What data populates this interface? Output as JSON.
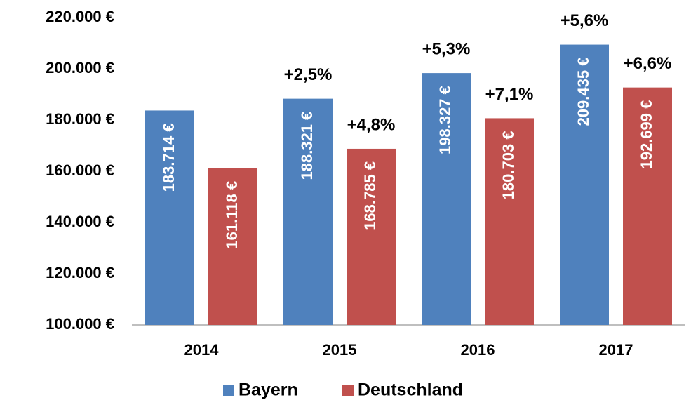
{
  "chart_data": {
    "type": "bar",
    "categories": [
      "2014",
      "2015",
      "2016",
      "2017"
    ],
    "series": [
      {
        "name": "Bayern",
        "color": "#4f81bd",
        "values": [
          183714,
          188321,
          198327,
          209435
        ],
        "value_labels": [
          "183.714 €",
          "188.321 €",
          "198.327 €",
          "209.435 €"
        ],
        "growth_labels": [
          null,
          "+2,5%",
          "+5,3%",
          "+5,6%"
        ]
      },
      {
        "name": "Deutschland",
        "color": "#c0504d",
        "values": [
          161118,
          168785,
          180703,
          192699
        ],
        "value_labels": [
          "161.118 €",
          "168.785 €",
          "180.703 €",
          "192.699 €"
        ],
        "growth_labels": [
          null,
          "+4,8%",
          "+7,1%",
          "+6,6%"
        ]
      }
    ],
    "ylim": [
      100000,
      220000
    ],
    "yticks": [
      {
        "value": 100000,
        "label": "100.000 €"
      },
      {
        "value": 120000,
        "label": "120.000 €"
      },
      {
        "value": 140000,
        "label": "140.000 €"
      },
      {
        "value": 160000,
        "label": "160.000 €"
      },
      {
        "value": 180000,
        "label": "180.000 €"
      },
      {
        "value": 200000,
        "label": "200.000 €"
      },
      {
        "value": 220000,
        "label": "220.000 €"
      }
    ],
    "grid": false,
    "legend": "bottom"
  }
}
